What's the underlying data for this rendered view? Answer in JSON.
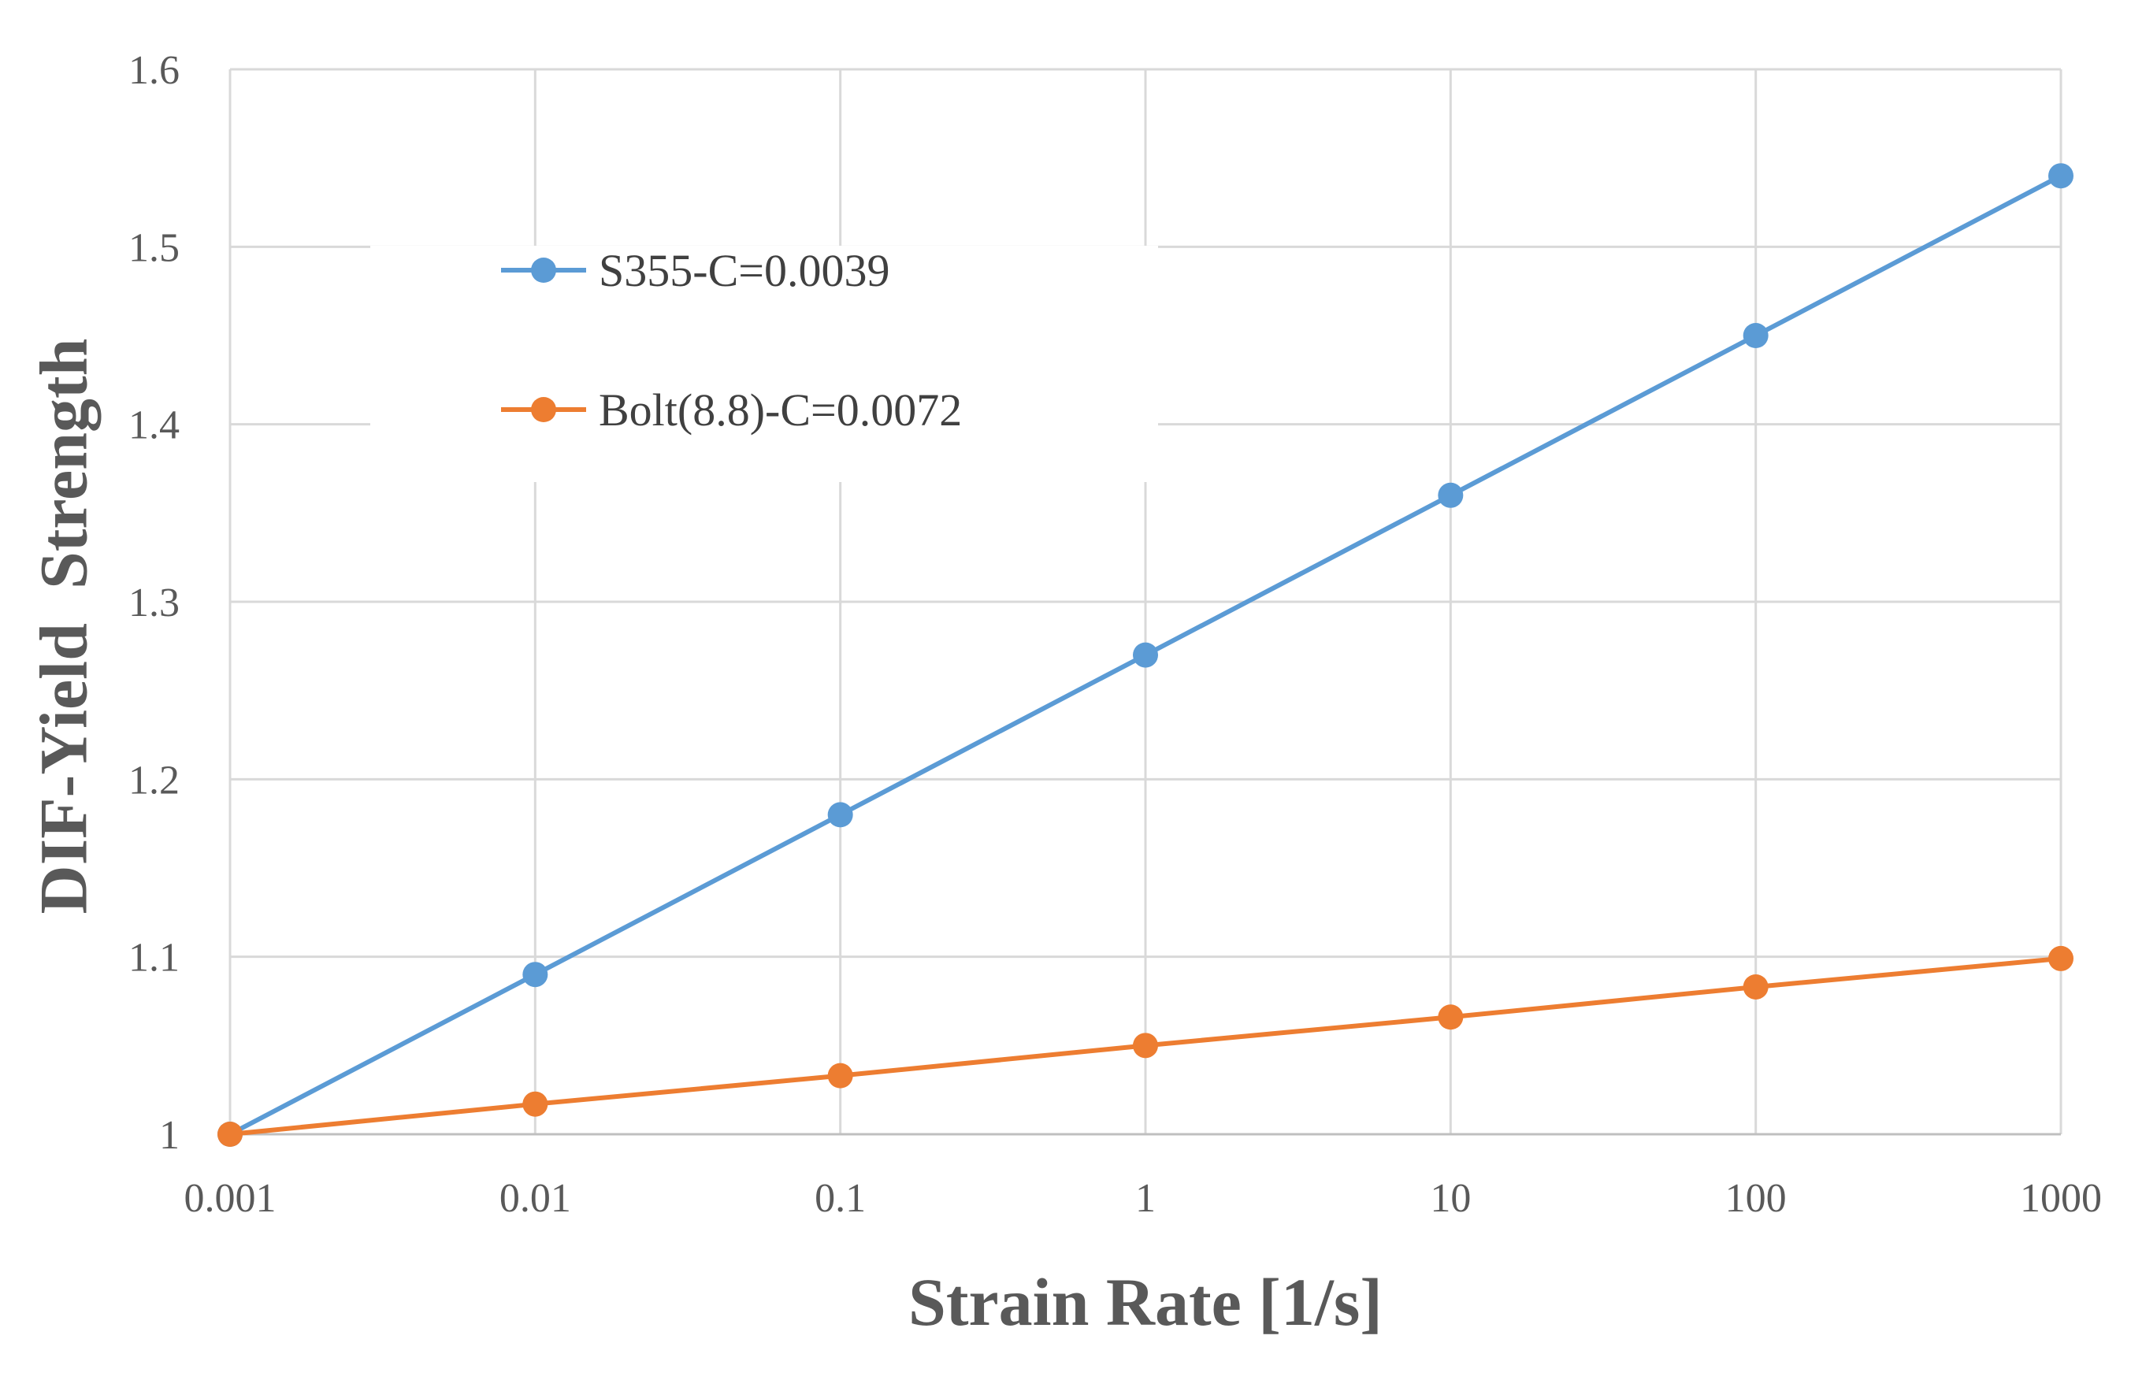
{
  "chart_data": {
    "type": "line",
    "title": "",
    "xlabel": "Strain Rate [1/s]",
    "ylabel": "DIF-Yield  Strength",
    "x_scale": "log",
    "categories": [
      "0.001",
      "0.01",
      "0.1",
      "1",
      "10",
      "100",
      "1000"
    ],
    "y_ticks": [
      "1",
      "1.1",
      "1.2",
      "1.3",
      "1.4",
      "1.5",
      "1.6"
    ],
    "ylim": [
      1.0,
      1.6
    ],
    "grid": true,
    "legend_position": "top-left",
    "series": [
      {
        "name": "S355-C=0.0039",
        "color": "#5b9bd5",
        "values": [
          1.0,
          1.09,
          1.18,
          1.27,
          1.36,
          1.45,
          1.54
        ]
      },
      {
        "name": "Bolt(8.8)-C=0.0072",
        "color": "#ed7d31",
        "values": [
          1.0,
          1.017,
          1.033,
          1.05,
          1.066,
          1.083,
          1.099
        ]
      }
    ]
  }
}
